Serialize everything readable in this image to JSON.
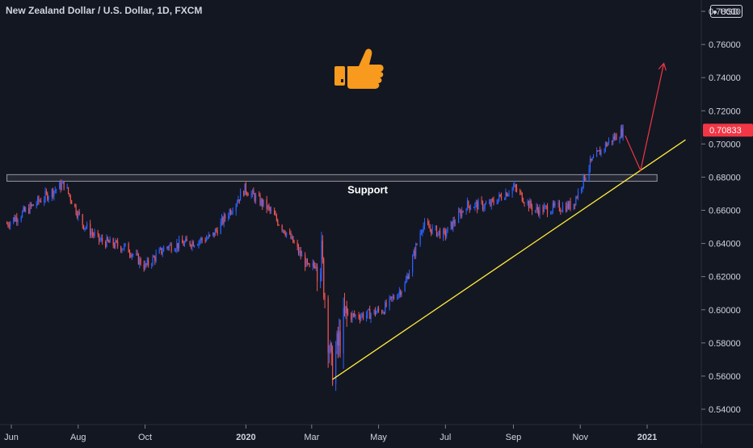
{
  "header": {
    "title": "New Zealand Dollar / U.S. Dollar, 1D, FXCM",
    "currency": "USD"
  },
  "colors": {
    "background": "#131722",
    "up": "#2962ff",
    "down": "#ef5350",
    "trendline": "#ffeb3b",
    "projection": "#f23645",
    "axis_text": "#d1d4dc",
    "price_tag": "#f23645"
  },
  "annotations": {
    "zone_label": "Support",
    "emoji_icon": "thumbs-up-icon"
  },
  "chart_data": {
    "type": "candlestick",
    "symbol": "NZDUSD",
    "interval": "1D",
    "current_price": "0.70833",
    "y_ticks": [
      "0.78000",
      "0.76000",
      "0.74000",
      "0.72000",
      "0.70000",
      "0.68000",
      "0.66000",
      "0.64000",
      "0.62000",
      "0.60000",
      "0.58000",
      "0.56000",
      "0.54000"
    ],
    "x_ticks": [
      {
        "label": "Jun",
        "date": "2019-06-01"
      },
      {
        "label": "Aug",
        "date": "2019-08-01"
      },
      {
        "label": "Oct",
        "date": "2019-10-01"
      },
      {
        "label": "2020",
        "date": "2020-01-01"
      },
      {
        "label": "Mar",
        "date": "2020-03-01"
      },
      {
        "label": "May",
        "date": "2020-05-01"
      },
      {
        "label": "Jul",
        "date": "2020-07-01"
      },
      {
        "label": "Sep",
        "date": "2020-09-01"
      },
      {
        "label": "Nov",
        "date": "2020-11-01"
      },
      {
        "label": "2021",
        "date": "2021-01-01"
      }
    ],
    "price_path": [
      {
        "date": "2019-05-28",
        "close": 0.652
      },
      {
        "date": "2019-06-15",
        "close": 0.66
      },
      {
        "date": "2019-07-01",
        "close": 0.668
      },
      {
        "date": "2019-07-19",
        "close": 0.676
      },
      {
        "date": "2019-08-05",
        "close": 0.652
      },
      {
        "date": "2019-08-20",
        "close": 0.642
      },
      {
        "date": "2019-09-15",
        "close": 0.637
      },
      {
        "date": "2019-10-01",
        "close": 0.626
      },
      {
        "date": "2019-10-20",
        "close": 0.638
      },
      {
        "date": "2019-11-15",
        "close": 0.641
      },
      {
        "date": "2019-12-01",
        "close": 0.644
      },
      {
        "date": "2019-12-31",
        "close": 0.673
      },
      {
        "date": "2020-01-20",
        "close": 0.662
      },
      {
        "date": "2020-02-10",
        "close": 0.644
      },
      {
        "date": "2020-02-28",
        "close": 0.624
      },
      {
        "date": "2020-03-10",
        "close": 0.632
      },
      {
        "date": "2020-03-19",
        "close": 0.563
      },
      {
        "date": "2020-04-01",
        "close": 0.596
      },
      {
        "date": "2020-04-20",
        "close": 0.597
      },
      {
        "date": "2020-05-05",
        "close": 0.6
      },
      {
        "date": "2020-05-25",
        "close": 0.615
      },
      {
        "date": "2020-06-10",
        "close": 0.651
      },
      {
        "date": "2020-06-30",
        "close": 0.645
      },
      {
        "date": "2020-07-20",
        "close": 0.663
      },
      {
        "date": "2020-08-10",
        "close": 0.663
      },
      {
        "date": "2020-09-01",
        "close": 0.674
      },
      {
        "date": "2020-09-20",
        "close": 0.66
      },
      {
        "date": "2020-10-05",
        "close": 0.661
      },
      {
        "date": "2020-10-25",
        "close": 0.663
      },
      {
        "date": "2020-11-10",
        "close": 0.688
      },
      {
        "date": "2020-11-25",
        "close": 0.7
      },
      {
        "date": "2020-12-10",
        "close": 0.708
      }
    ],
    "support_zone": {
      "low": 0.6775,
      "high": 0.6815,
      "start": "2019-05-28",
      "end": "2021-01-10"
    },
    "trendline": {
      "start": {
        "date": "2020-03-20",
        "price": 0.558
      },
      "end": {
        "date": "2021-02-05",
        "price": 0.7025
      }
    },
    "projection": [
      {
        "date": "2020-12-12",
        "price": 0.705
      },
      {
        "date": "2020-12-26",
        "price": 0.684
      },
      {
        "date": "2021-01-16",
        "price": 0.748
      }
    ]
  }
}
